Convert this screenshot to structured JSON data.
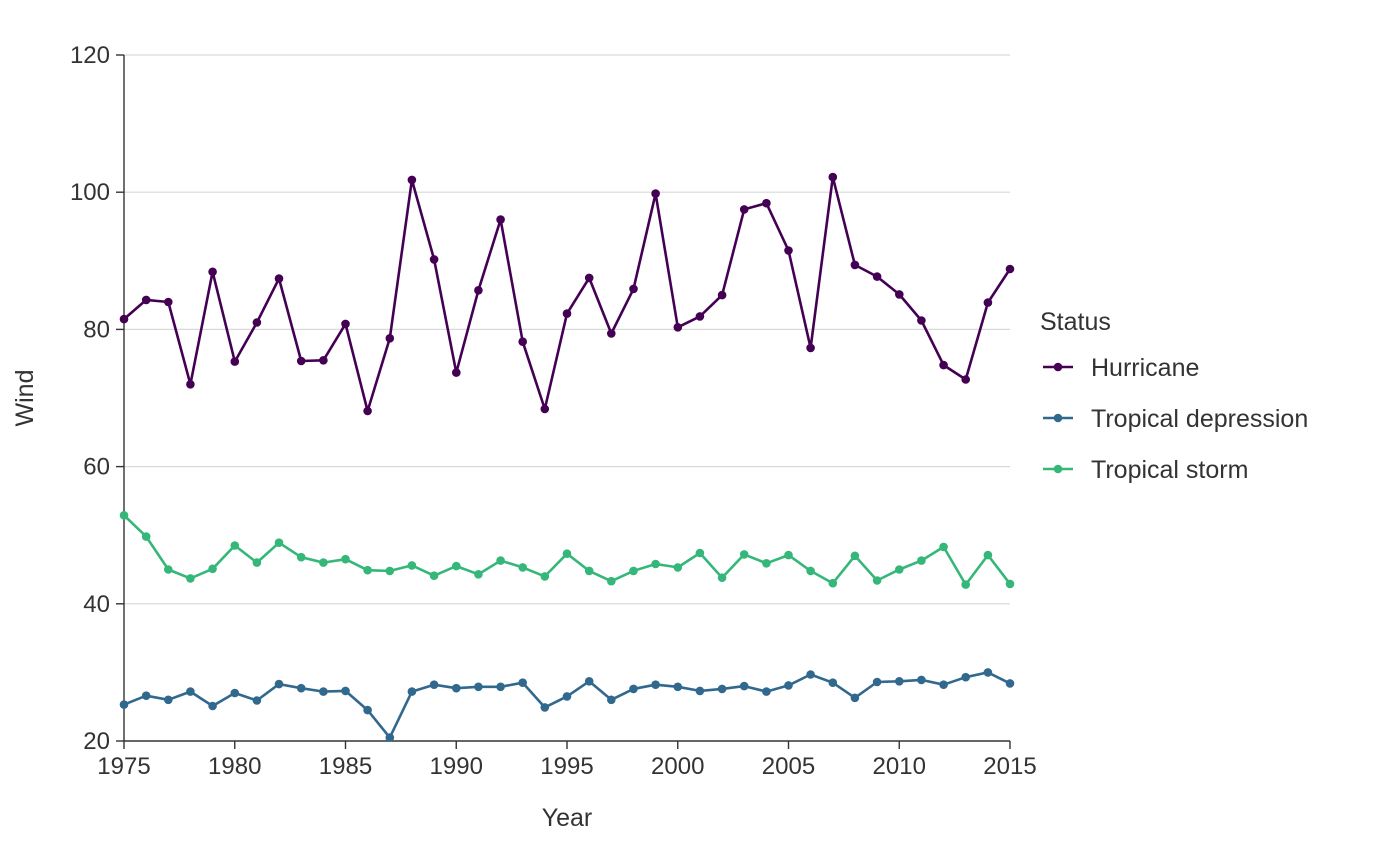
{
  "chart_data": {
    "type": "line",
    "xlabel": "Year",
    "ylabel": "Wind",
    "xlim": [
      1975,
      2015
    ],
    "ylim": [
      20,
      120
    ],
    "x_ticks": [
      1975,
      1980,
      1985,
      1990,
      1995,
      2000,
      2005,
      2010,
      2015
    ],
    "y_ticks": [
      20,
      40,
      60,
      80,
      100,
      120
    ],
    "grid": "horizontal",
    "legend": {
      "title": "Status",
      "placement": "right"
    },
    "x": [
      1975,
      1976,
      1977,
      1978,
      1979,
      1980,
      1981,
      1982,
      1983,
      1984,
      1985,
      1986,
      1987,
      1988,
      1989,
      1990,
      1991,
      1992,
      1993,
      1994,
      1995,
      1996,
      1997,
      1998,
      1999,
      2000,
      2001,
      2002,
      2003,
      2004,
      2005,
      2006,
      2007,
      2008,
      2009,
      2010,
      2011,
      2012,
      2013,
      2014,
      2015
    ],
    "series": [
      {
        "name": "Hurricane",
        "color": "#440154",
        "values": [
          81.5,
          84.3,
          84.0,
          72.0,
          88.4,
          75.3,
          81.0,
          87.4,
          75.4,
          75.5,
          80.8,
          68.1,
          78.7,
          101.8,
          90.2,
          73.7,
          85.7,
          96.0,
          78.2,
          68.4,
          82.3,
          87.5,
          79.4,
          85.9,
          99.8,
          80.3,
          81.9,
          85.0,
          97.5,
          98.4,
          91.5,
          77.3,
          102.2,
          89.4,
          87.7,
          85.1,
          81.3,
          74.8,
          72.7,
          83.9,
          88.8
        ]
      },
      {
        "name": "Tropical depression",
        "color": "#31688E",
        "values": [
          25.3,
          26.6,
          26.0,
          27.2,
          25.1,
          27.0,
          25.9,
          28.3,
          27.7,
          27.2,
          27.3,
          24.5,
          20.5,
          27.2,
          28.2,
          27.7,
          27.9,
          27.9,
          28.5,
          24.9,
          26.5,
          28.7,
          26.0,
          27.6,
          28.2,
          27.9,
          27.3,
          27.6,
          28.0,
          27.2,
          28.1,
          29.7,
          28.5,
          26.3,
          28.6,
          28.7,
          28.9,
          28.2,
          29.3,
          30.0,
          28.4
        ]
      },
      {
        "name": "Tropical storm",
        "color": "#35B779",
        "values": [
          52.9,
          49.8,
          45.0,
          43.7,
          45.1,
          48.5,
          46.0,
          48.9,
          46.8,
          46.0,
          46.5,
          44.9,
          44.8,
          45.6,
          44.1,
          45.5,
          44.3,
          46.3,
          45.3,
          44.0,
          47.3,
          44.8,
          43.3,
          44.8,
          45.8,
          45.3,
          47.4,
          43.8,
          47.2,
          45.9,
          47.1,
          44.8,
          43.0,
          47.0,
          43.4,
          45.0,
          46.3,
          48.3,
          42.8,
          47.1,
          42.9
        ]
      }
    ]
  }
}
